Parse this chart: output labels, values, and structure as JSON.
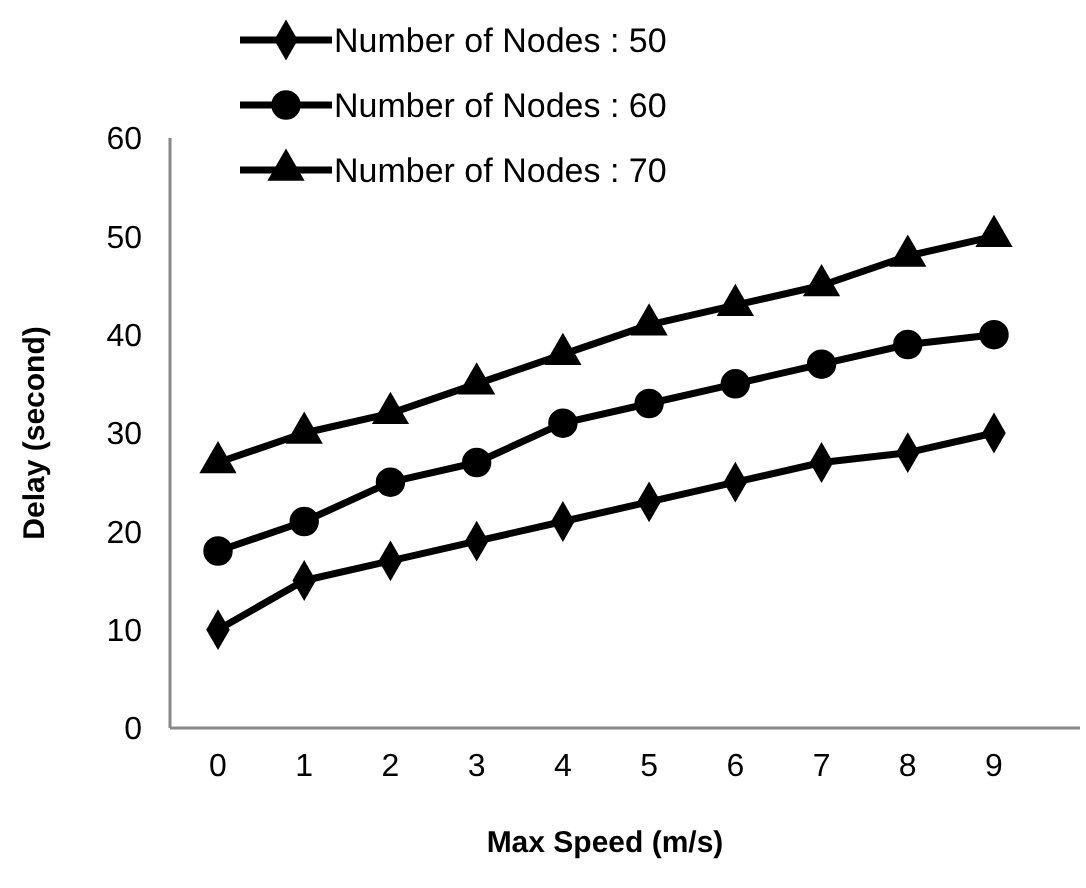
{
  "chart_data": {
    "type": "line",
    "xlabel": "Max Speed (m/s)",
    "ylabel": "Delay (second)",
    "categories": [
      "0",
      "1",
      "2",
      "3",
      "4",
      "5",
      "6",
      "7",
      "8",
      "9"
    ],
    "series": [
      {
        "name": "Number of Nodes : 50",
        "color": "#000000",
        "marker": "diamond",
        "values": [
          10,
          15,
          17,
          19,
          21,
          23,
          25,
          27,
          28,
          30
        ]
      },
      {
        "name": "Number of Nodes : 60",
        "color": "#000000",
        "marker": "circle",
        "values": [
          18,
          21,
          25,
          27,
          31,
          33,
          35,
          37,
          39,
          40
        ]
      },
      {
        "name": "Number of Nodes : 70",
        "color": "#000000",
        "marker": "triangle",
        "values": [
          27,
          30,
          32,
          35,
          38,
          41,
          43,
          45,
          48,
          50
        ]
      }
    ],
    "ylim": [
      0,
      60
    ],
    "yticks": [
      0,
      10,
      20,
      30,
      40,
      50,
      60
    ],
    "legend": "top",
    "grid": false,
    "line_style": "solid"
  }
}
